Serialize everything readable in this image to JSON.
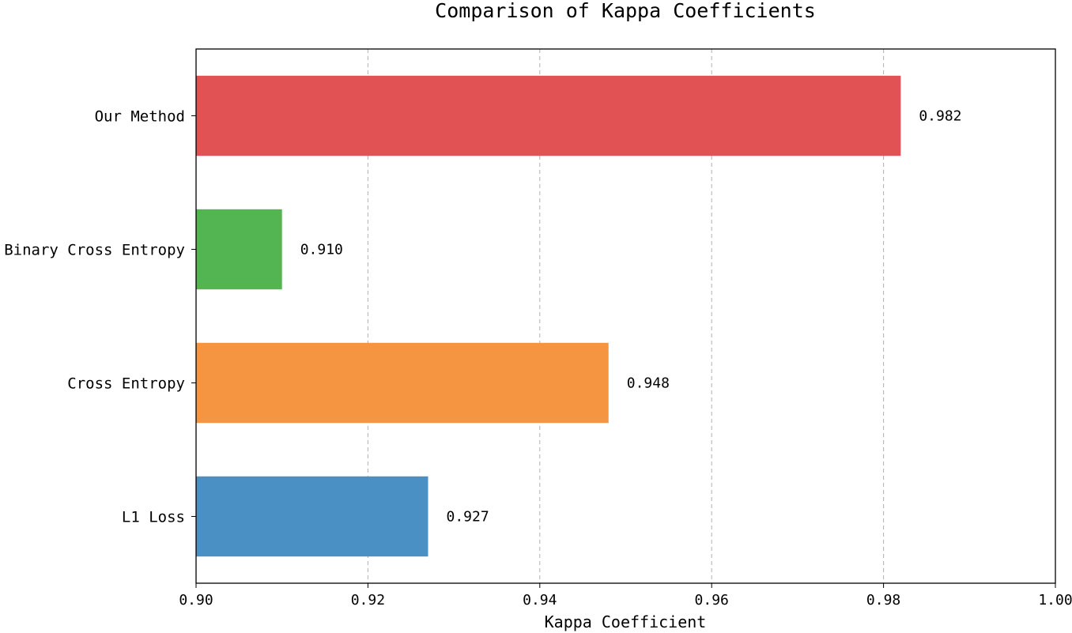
{
  "chart_data": {
    "type": "bar",
    "orientation": "horizontal",
    "title": "Comparison of Kappa Coefficients",
    "xlabel": "Kappa Coefficient",
    "ylabel": "",
    "categories": [
      "L1 Loss",
      "Cross Entropy",
      "Binary Cross Entropy",
      "Our Method"
    ],
    "values": [
      0.927,
      0.948,
      0.91,
      0.982
    ],
    "value_labels": [
      "0.927",
      "0.948",
      "0.910",
      "0.982"
    ],
    "colors": [
      "#4a90c4",
      "#f59541",
      "#52b552",
      "#e05254"
    ],
    "xlim": [
      0.9,
      1.0
    ],
    "xticks": [
      0.9,
      0.92,
      0.94,
      0.96,
      0.98,
      1.0
    ],
    "xtick_labels": [
      "0.90",
      "0.92",
      "0.94",
      "0.96",
      "0.98",
      "1.00"
    ],
    "grid": "x dashed",
    "legend": "none"
  }
}
